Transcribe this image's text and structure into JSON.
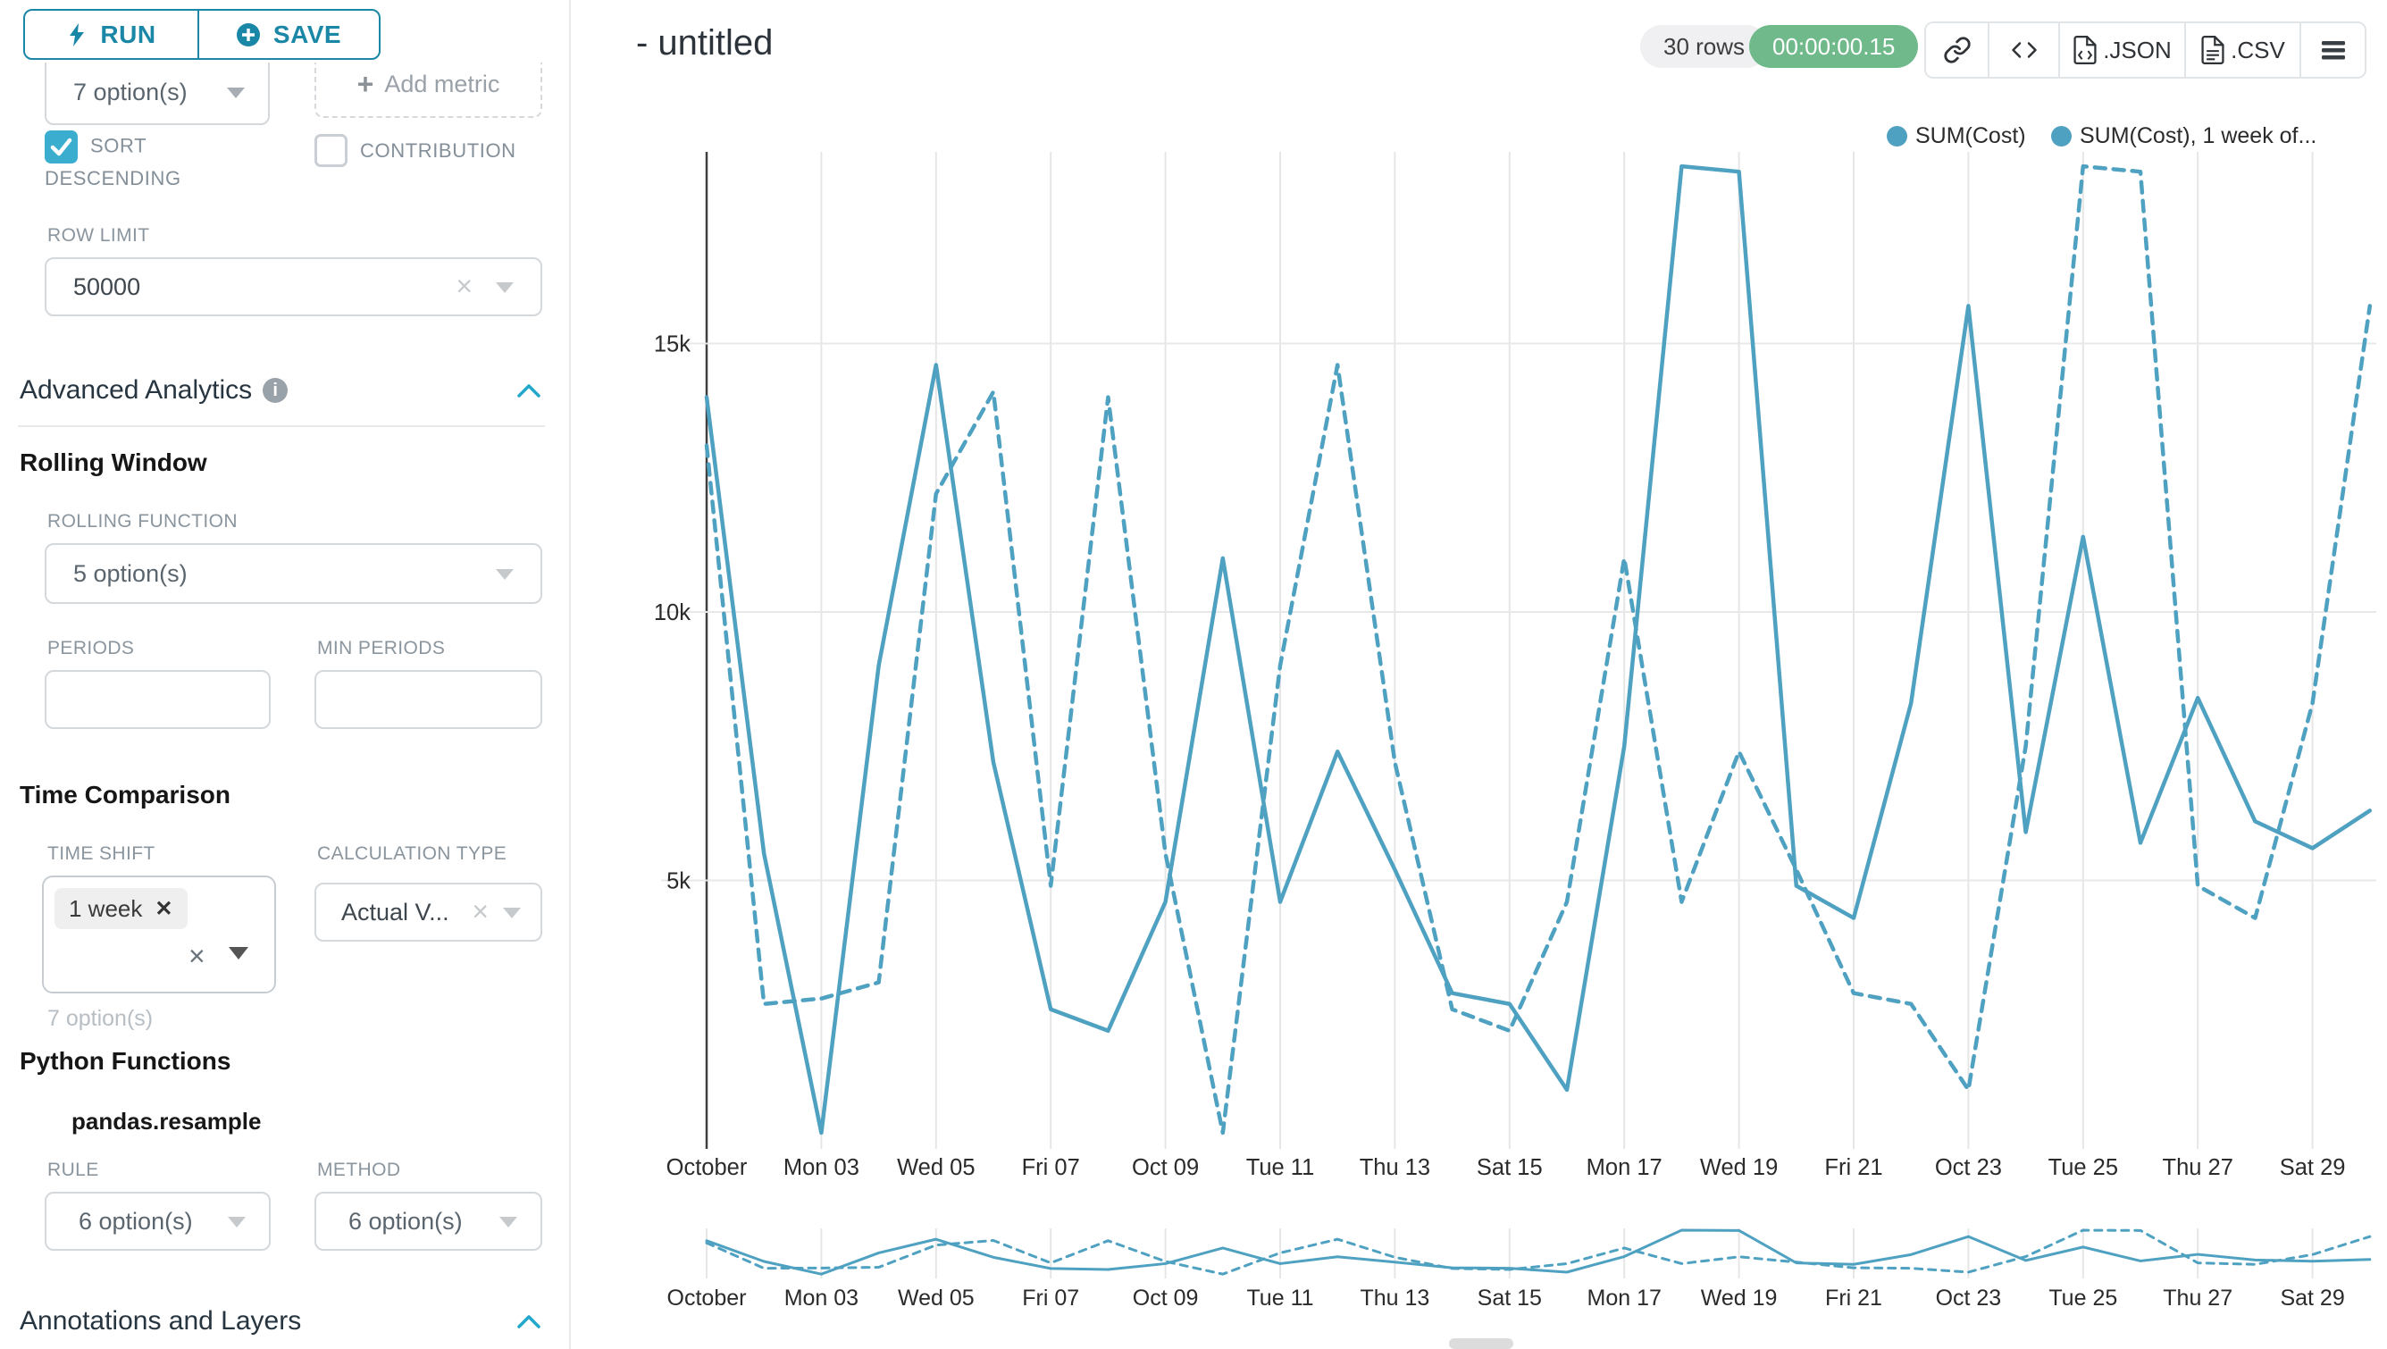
{
  "colors": {
    "accent_teal": "#1A87A6",
    "checkbox_teal": "#3BAED0",
    "series_line": "#4FA1C1",
    "timer_green": "#6FB98B"
  },
  "sidebar": {
    "run_button": "RUN",
    "save_button": "SAVE",
    "groupby_value": "7 option(s)",
    "add_metric": "Add metric",
    "sort_descending": {
      "label": "SORT DESCENDING",
      "checked": true
    },
    "contribution": {
      "label": "CONTRIBUTION",
      "checked": false
    },
    "row_limit": {
      "label": "ROW LIMIT",
      "value": "50000"
    },
    "advanced_analytics_title": "Advanced Analytics",
    "rolling_window": {
      "title": "Rolling Window",
      "function_label": "ROLLING FUNCTION",
      "function_value": "5 option(s)",
      "periods_label": "PERIODS",
      "periods_value": "",
      "min_periods_label": "MIN PERIODS",
      "min_periods_value": ""
    },
    "time_comparison": {
      "title": "Time Comparison",
      "time_shift_label": "TIME SHIFT",
      "time_shift_tag": "1 week",
      "time_shift_helper": "7 option(s)",
      "calculation_type_label": "CALCULATION TYPE",
      "calculation_type_value": "Actual V..."
    },
    "python_functions": {
      "title": "Python Functions",
      "name": "pandas.resample",
      "rule_label": "RULE",
      "rule_value": "6 option(s)",
      "method_label": "METHOD",
      "method_value": "6 option(s)"
    },
    "annotations_title": "Annotations and Layers"
  },
  "header": {
    "title": "- untitled",
    "rows_badge": "30 rows",
    "timer": "00:00:00.15",
    "json_label": ".JSON",
    "csv_label": ".CSV"
  },
  "icons": {
    "run": "bolt-icon",
    "save": "plus-circle-icon",
    "info": "info-icon",
    "collapse": "chevron-up-icon",
    "select": "caret-down-icon",
    "clear": "x-icon",
    "share": "link-icon",
    "embed": "code-icon",
    "export": "file-icon",
    "more": "menu-icon"
  },
  "chart_data": {
    "type": "line",
    "title": "- untitled",
    "xlabel": "",
    "ylabel": "",
    "grid": true,
    "legend_position": "top-right",
    "x_days": [
      1,
      2,
      3,
      4,
      5,
      6,
      7,
      8,
      9,
      10,
      11,
      12,
      13,
      14,
      15,
      16,
      17,
      18,
      19,
      20,
      21,
      22,
      23,
      24,
      25,
      26,
      27,
      28,
      29,
      30
    ],
    "tick_days": [
      1,
      3,
      5,
      7,
      9,
      11,
      13,
      15,
      17,
      19,
      21,
      23,
      25,
      27,
      29
    ],
    "tick_labels": [
      "October",
      "Mon 03",
      "Wed 05",
      "Fri 07",
      "Oct 09",
      "Tue 11",
      "Thu 13",
      "Sat 15",
      "Mon 17",
      "Wed 19",
      "Fri 21",
      "Oct 23",
      "Tue 25",
      "Thu 27",
      "Sat 29"
    ],
    "yticks": [
      {
        "value": 5000,
        "label": "5k"
      },
      {
        "value": 10000,
        "label": "10k"
      },
      {
        "value": 15000,
        "label": "15k"
      }
    ],
    "ylim": [
      0,
      18600
    ],
    "series": [
      {
        "name": "SUM(Cost)",
        "style": "solid",
        "color": "#4FA1C1",
        "values": [
          14000,
          5500,
          300,
          9000,
          14600,
          7200,
          2600,
          2200,
          4600,
          11000,
          4600,
          7400,
          5200,
          2900,
          2700,
          1100,
          7500,
          18300,
          18200,
          4900,
          4300,
          8300,
          15700,
          5900,
          11400,
          5700,
          8400,
          6100,
          5600,
          6300
        ]
      },
      {
        "name": "SUM(Cost), 1 week of...",
        "style": "dashed",
        "color": "#4FA1C1",
        "values": [
          13100,
          2700,
          2800,
          3100,
          12200,
          14100,
          4900,
          14000,
          5500,
          300,
          9000,
          14600,
          7200,
          2600,
          2200,
          4600,
          11000,
          4600,
          7400,
          5200,
          2900,
          2700,
          1100,
          7500,
          18300,
          18200,
          4900,
          4300,
          8300,
          15700
        ]
      }
    ]
  }
}
